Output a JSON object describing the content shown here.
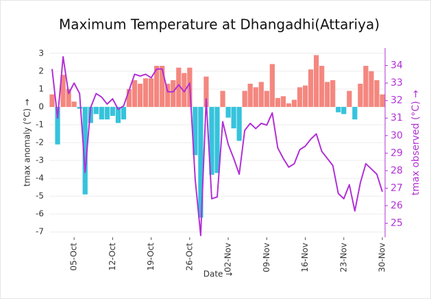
{
  "chart_data": {
    "type": "bar_line",
    "title": "Maximum Temperature at Dhangadhi(Attariya)",
    "xlabel": "Date →",
    "ylabel": "tmax anomaly (°C) →",
    "y2label": "tmax observed (°C) →",
    "categories": [
      null,
      null,
      null,
      null,
      "05-Oct",
      null,
      null,
      null,
      null,
      null,
      null,
      "12-Oct",
      null,
      null,
      null,
      null,
      null,
      null,
      "19-Oct",
      null,
      null,
      null,
      null,
      null,
      null,
      "26-Oct",
      null,
      null,
      null,
      null,
      null,
      null,
      "02-Nov",
      null,
      null,
      null,
      null,
      null,
      null,
      "09-Nov",
      null,
      null,
      null,
      null,
      null,
      null,
      "16-Nov",
      null,
      null,
      null,
      null,
      null,
      null,
      "23-Nov",
      null,
      null,
      null,
      null,
      null,
      null,
      "30-Nov"
    ],
    "series": [
      {
        "name": "tmax anomaly",
        "type": "bar",
        "positive_color": "#f4877f",
        "negative_color": "#36c3dc",
        "values": [
          0.7,
          -2.1,
          1.8,
          1.0,
          0.3,
          -0.1,
          -4.9,
          -0.9,
          -0.4,
          -0.7,
          -0.7,
          -0.5,
          -0.9,
          -0.7,
          1.0,
          1.5,
          1.3,
          1.6,
          1.6,
          2.3,
          2.3,
          1.3,
          1.5,
          2.2,
          1.9,
          2.2,
          -2.7,
          -6.2,
          1.7,
          -3.8,
          -3.7,
          0.9,
          -0.6,
          -1.2,
          -1.9,
          0.9,
          1.3,
          1.1,
          1.4,
          0.9,
          2.4,
          0.5,
          0.6,
          0.2,
          0.4,
          1.1,
          1.2,
          2.1,
          2.9,
          2.3,
          1.4,
          1.5,
          -0.3,
          -0.4,
          0.9,
          -0.7,
          1.3,
          2.3,
          2.0,
          1.5,
          0.7
        ]
      },
      {
        "name": "tmax observed",
        "type": "line",
        "axis": "y2",
        "color": "#b12fd6",
        "values": [
          33.8,
          31.0,
          34.5,
          32.4,
          33.0,
          32.4,
          27.9,
          31.6,
          32.4,
          32.2,
          31.8,
          32.1,
          31.5,
          31.7,
          32.6,
          33.5,
          33.4,
          33.5,
          33.3,
          33.8,
          33.8,
          32.5,
          32.5,
          32.9,
          32.5,
          33.0,
          27.5,
          24.3,
          32.1,
          26.4,
          26.5,
          30.8,
          29.5,
          28.7,
          27.8,
          30.3,
          30.7,
          30.4,
          30.7,
          30.6,
          31.3,
          29.3,
          28.7,
          28.2,
          28.4,
          29.2,
          29.4,
          29.8,
          30.1,
          29.1,
          28.7,
          28.3,
          26.7,
          26.4,
          27.2,
          25.7,
          27.3,
          28.4,
          28.1,
          27.8,
          26.8
        ]
      }
    ],
    "ylim": [
      -7.3,
      3.3
    ],
    "yticks": [
      3,
      2,
      1,
      0,
      -1,
      -2,
      -3,
      -4,
      -5,
      -6,
      -7
    ],
    "y2lim": [
      24.2,
      35.0
    ],
    "y2ticks": [
      25,
      26,
      27,
      28,
      29,
      30,
      31,
      32,
      33,
      34
    ],
    "grid": true
  }
}
